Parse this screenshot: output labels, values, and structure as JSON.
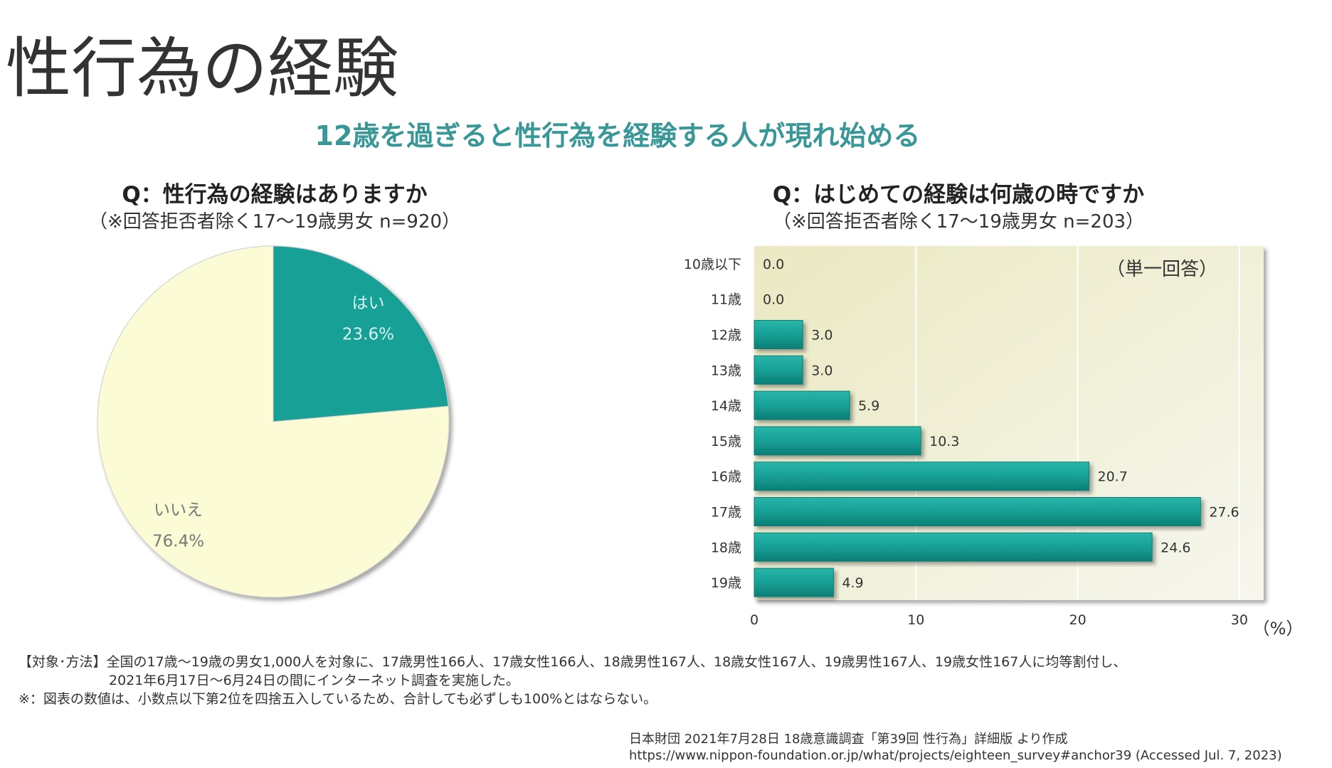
{
  "header": {
    "title": "性行為の経験",
    "subtitle": "12歳を過ぎると性行為を経験する人が現れ始める"
  },
  "chart_data": [
    {
      "type": "pie",
      "title": "Q：性行為の経験はありますか",
      "subtitle": "（※回答拒否者除く17～19歳男女 n=920）",
      "categories": [
        "はい",
        "いいえ"
      ],
      "values": [
        23.6,
        76.4
      ],
      "value_labels": [
        "23.6%",
        "76.4%"
      ],
      "colors": [
        "#16a096",
        "#fbfbd6"
      ]
    },
    {
      "type": "barh",
      "title": "Q：はじめての経験は何歳の時ですか",
      "subtitle": "（※回答拒否者除く17～19歳男女 n=203）",
      "annotation": "（単一回答）",
      "x_unit": "（%）",
      "categories": [
        "10歳以下",
        "11歳",
        "12歳",
        "13歳",
        "14歳",
        "15歳",
        "16歳",
        "17歳",
        "18歳",
        "19歳"
      ],
      "values": [
        0.0,
        0.0,
        3.0,
        3.0,
        5.9,
        10.3,
        20.7,
        27.6,
        24.6,
        4.9
      ],
      "value_labels": [
        "0.0",
        "0.0",
        "3.0",
        "3.0",
        "5.9",
        "10.3",
        "20.7",
        "27.6",
        "24.6",
        "4.9"
      ],
      "color": "#16a096",
      "xlim": [
        0,
        31.5
      ],
      "xticks": [
        0,
        10,
        20,
        30
      ],
      "grid": true
    }
  ],
  "notes": {
    "method": "【対象･方法】全国の17歳～19歳の男女1,000人を対象に、17歳男性166人、17歳女性166人、18歳男性167人、18歳女性167人、19歳男性167人、19歳女性167人に均等割付し、",
    "method_2": "2021年6月17日～6月24日の間にインターネット調査を実施した。",
    "rounding": "※：図表の数値は、小数点以下第2位を四捨五入しているため、合計しても必ずしも100%とはならない。",
    "source": "日本財団 2021年7月28日 18歳意識調査「第39回 性行為」詳細版 より作成",
    "url": "https://www.nippon-foundation.or.jp/what/projects/eighteen_survey#anchor39 (Accessed Jul. 7, 2023)"
  }
}
